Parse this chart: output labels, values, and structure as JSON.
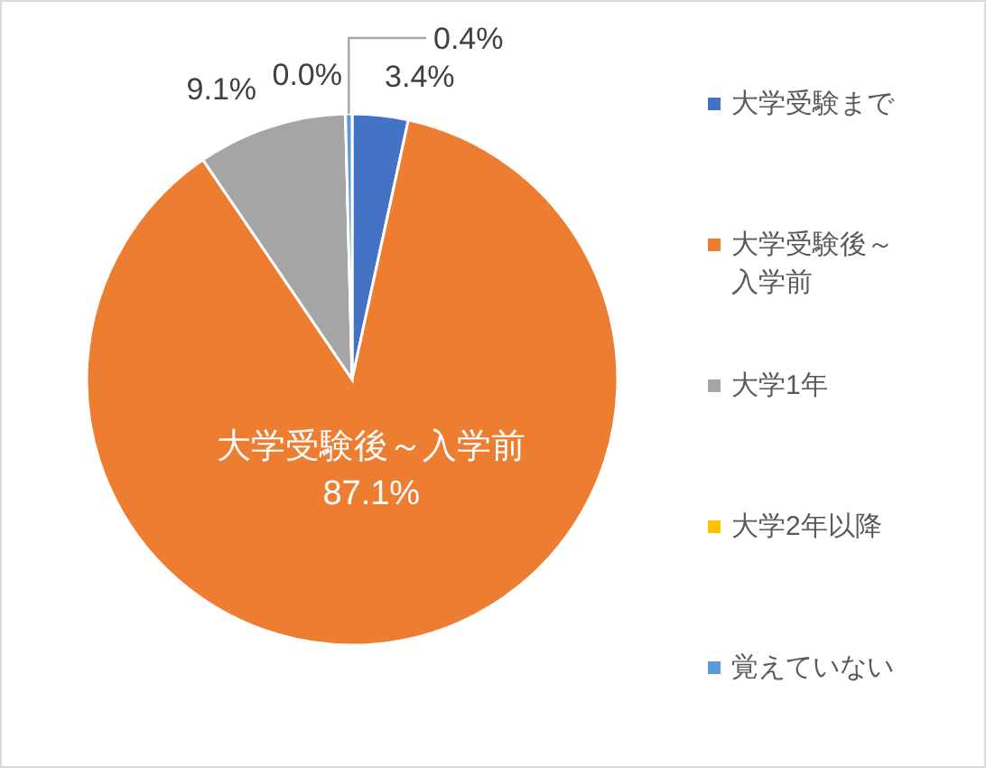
{
  "chart_data": {
    "type": "pie",
    "categories": [
      "大学受験まで",
      "大学受験後～入学前",
      "大学1年",
      "大学2年以降",
      "覚えていない"
    ],
    "values": [
      3.4,
      87.1,
      9.1,
      0.0,
      0.4
    ],
    "colors": [
      "#4472c4",
      "#ed7d31",
      "#a5a5a5",
      "#ffc000",
      "#5b9bd5"
    ],
    "value_labels": [
      "3.4%",
      "大学受験後～入学前 87.1%",
      "9.1%",
      "0.0%",
      "0.4%"
    ],
    "legend": "right"
  }
}
